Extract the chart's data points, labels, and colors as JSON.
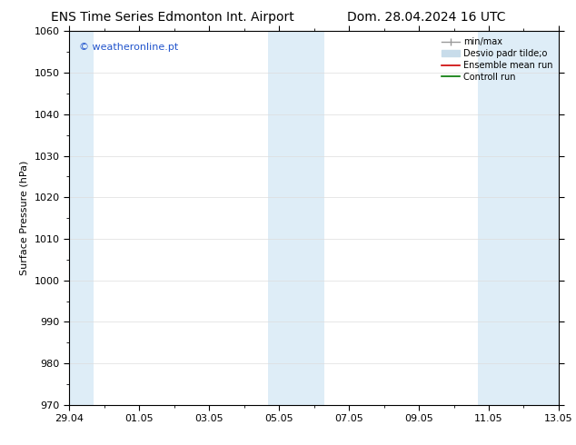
{
  "title_left": "ENS Time Series Edmonton Int. Airport",
  "title_right": "Dom. 28.04.2024 16 UTC",
  "ylabel": "Surface Pressure (hPa)",
  "ylim": [
    970,
    1060
  ],
  "yticks": [
    970,
    980,
    990,
    1000,
    1010,
    1020,
    1030,
    1040,
    1050,
    1060
  ],
  "xtick_labels": [
    "29.04",
    "01.05",
    "03.05",
    "05.05",
    "07.05",
    "09.05",
    "11.05",
    "13.05"
  ],
  "xtick_positions": [
    0,
    2,
    4,
    6,
    8,
    10,
    12,
    14
  ],
  "xlim": [
    0,
    14
  ],
  "shade_regions": [
    {
      "x_start": 0.0,
      "x_end": 0.7,
      "color": "#deedf7"
    },
    {
      "x_start": 5.7,
      "x_end": 7.3,
      "color": "#deedf7"
    },
    {
      "x_start": 11.7,
      "x_end": 14.0,
      "color": "#deedf7"
    }
  ],
  "watermark": "© weatheronline.pt",
  "watermark_color": "#2255cc",
  "legend_entries": [
    {
      "label": "min/max",
      "color": "#999999",
      "lw": 1.0
    },
    {
      "label": "Desvio padr tilde;o",
      "color": "#c8dcea",
      "lw": 6
    },
    {
      "label": "Ensemble mean run",
      "color": "#cc0000",
      "lw": 1.2
    },
    {
      "label": "Controll run",
      "color": "#007700",
      "lw": 1.2
    }
  ],
  "bg_color": "#ffffff",
  "plot_bg_color": "#ffffff",
  "grid_color": "#dddddd",
  "title_fontsize": 10,
  "ylabel_fontsize": 8,
  "tick_fontsize": 8,
  "watermark_fontsize": 8,
  "legend_fontsize": 7
}
